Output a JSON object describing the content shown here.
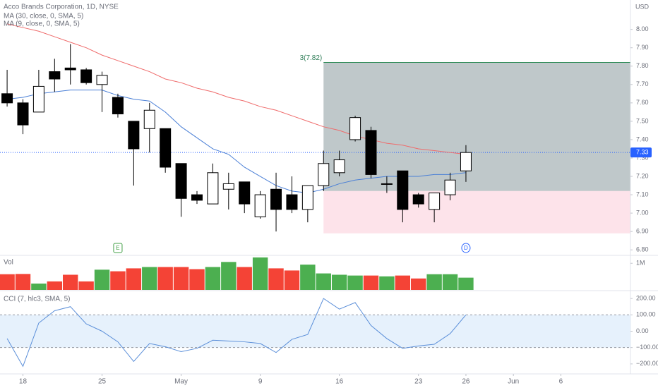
{
  "chart_data": [
    {
      "type": "candlestick",
      "title": "Acco Brands Corporation, 1D, NYSE",
      "currency": "USD",
      "x": [
        0,
        1,
        2,
        3,
        4,
        5,
        6,
        7,
        8,
        9,
        10,
        11,
        12,
        13,
        14,
        15,
        16,
        17,
        18,
        19,
        20,
        21,
        22,
        23,
        24,
        25,
        26,
        27,
        28,
        29
      ],
      "open": [
        7.65,
        7.6,
        7.55,
        7.77,
        7.79,
        7.78,
        7.7,
        7.63,
        7.5,
        7.46,
        7.46,
        7.27,
        7.1,
        7.05,
        7.13,
        7.17,
        6.98,
        7.13,
        7.1,
        7.02,
        7.15,
        7.22,
        7.4,
        7.45,
        7.16,
        7.23,
        7.1,
        7.02,
        7.1,
        7.23
      ],
      "high": [
        7.78,
        7.62,
        7.78,
        7.84,
        7.92,
        7.79,
        7.77,
        7.65,
        7.5,
        7.6,
        7.46,
        7.27,
        7.12,
        7.27,
        7.22,
        7.17,
        7.12,
        7.22,
        7.2,
        7.15,
        7.34,
        7.34,
        7.53,
        7.47,
        7.2,
        7.23,
        7.11,
        7.11,
        7.22,
        7.37
      ],
      "low": [
        7.58,
        7.43,
        7.55,
        7.66,
        7.7,
        7.7,
        7.55,
        7.52,
        7.15,
        7.33,
        7.22,
        6.98,
        7.05,
        7.05,
        7.02,
        7.0,
        6.97,
        6.9,
        7.0,
        6.95,
        7.12,
        7.2,
        7.39,
        7.19,
        7.11,
        6.95,
        7.03,
        6.95,
        7.07,
        7.17
      ],
      "close": [
        7.6,
        7.48,
        7.69,
        7.73,
        7.78,
        7.71,
        7.75,
        7.54,
        7.35,
        7.56,
        7.25,
        7.08,
        7.07,
        7.22,
        7.16,
        7.05,
        7.1,
        7.02,
        7.02,
        7.15,
        7.27,
        7.29,
        7.52,
        7.21,
        7.16,
        7.02,
        7.05,
        7.11,
        7.18,
        7.33
      ],
      "up_color": "#ffffff",
      "down_color": "#000000",
      "overlays": [
        {
          "name": "MA (30, close, 0, SMA, 5)",
          "color": "#ef6b6b",
          "values": [
            8.03,
            8.01,
            7.99,
            7.96,
            7.93,
            7.9,
            7.86,
            7.83,
            7.8,
            7.77,
            7.73,
            7.71,
            7.68,
            7.66,
            7.63,
            7.61,
            7.58,
            7.56,
            7.53,
            7.5,
            7.47,
            7.45,
            7.42,
            7.4,
            7.38,
            7.37,
            7.35,
            7.34,
            7.33,
            7.32
          ]
        },
        {
          "name": "MA (9, close, 0, SMA, 5)",
          "color": "#4a7fd6",
          "values": [
            7.62,
            7.63,
            7.65,
            7.66,
            7.67,
            7.67,
            7.67,
            7.64,
            7.62,
            7.61,
            7.55,
            7.47,
            7.41,
            7.35,
            7.32,
            7.25,
            7.2,
            7.15,
            7.12,
            7.11,
            7.13,
            7.16,
            7.18,
            7.19,
            7.2,
            7.2,
            7.2,
            7.21,
            7.21,
            7.22
          ]
        }
      ],
      "last_price": 7.33,
      "last_price_color": "#2962ff",
      "position": {
        "start_x": 20,
        "target": 7.82,
        "entry": 7.12,
        "stop": 6.89,
        "target_label": "3(7.82)"
      },
      "events": [
        {
          "x": 7,
          "label": "E",
          "color": "#43a047"
        },
        {
          "x": 29,
          "label": "D",
          "color": "#2962ff"
        }
      ],
      "xlim": [
        -0.45,
        39.4
      ],
      "xticks": [
        {
          "value": 1,
          "label": "18"
        },
        {
          "value": 6,
          "label": "25"
        },
        {
          "value": 11,
          "label": "May"
        },
        {
          "value": 16,
          "label": "9"
        },
        {
          "value": 21,
          "label": "16"
        },
        {
          "value": 26,
          "label": "23"
        },
        {
          "value": 29,
          "label": "26"
        },
        {
          "value": 32,
          "label": "Jun"
        },
        {
          "value": 35,
          "label": "6"
        }
      ],
      "ylim": [
        6.77,
        8.16
      ],
      "yticks": [
        {
          "value": 8.0,
          "label": "8.00"
        },
        {
          "value": 7.9,
          "label": "7.90"
        },
        {
          "value": 7.8,
          "label": "7.80"
        },
        {
          "value": 7.7,
          "label": "7.70"
        },
        {
          "value": 7.6,
          "label": "7.60"
        },
        {
          "value": 7.5,
          "label": "7.50"
        },
        {
          "value": 7.4,
          "label": "7.40"
        },
        {
          "value": 7.3,
          "label": "7.30"
        },
        {
          "value": 7.2,
          "label": "7.20"
        },
        {
          "value": 7.1,
          "label": "7.10"
        },
        {
          "value": 7.0,
          "label": "7.00"
        },
        {
          "value": 6.9,
          "label": "6.90"
        },
        {
          "value": 6.8,
          "label": "6.80"
        }
      ]
    },
    {
      "type": "bar",
      "title": "Vol",
      "values": [
        590000,
        600000,
        240000,
        320000,
        570000,
        320000,
        760000,
        700000,
        810000,
        860000,
        860000,
        860000,
        780000,
        860000,
        1050000,
        860000,
        1220000,
        810000,
        730000,
        950000,
        620000,
        570000,
        540000,
        540000,
        510000,
        540000,
        430000,
        590000,
        590000,
        460000
      ],
      "up_color": "#4caf50",
      "down_color": "#f44336",
      "ylim": [
        0,
        1297000
      ],
      "yticks": [
        {
          "value": 1000000,
          "label": "1M"
        }
      ]
    },
    {
      "type": "line",
      "title": "CCI (7, hlc3, SMA, 5)",
      "color": "#5b8fd9",
      "band_color": "#e6f1fc",
      "values": [
        -45,
        -215,
        50,
        125,
        150,
        45,
        0,
        -65,
        -185,
        -75,
        -95,
        -125,
        -105,
        -55,
        -60,
        -65,
        -75,
        -130,
        -50,
        -20,
        200,
        135,
        175,
        35,
        -45,
        -105,
        -90,
        -80,
        -15,
        100
      ],
      "band": [
        -100,
        100
      ],
      "ylim": [
        -261,
        248
      ],
      "yticks": [
        {
          "value": 200,
          "label": "200.00"
        },
        {
          "value": 100,
          "label": "100.00"
        },
        {
          "value": 0,
          "label": "0.00"
        },
        {
          "value": -100,
          "label": "−100.00"
        },
        {
          "value": -200,
          "label": "−200.00"
        }
      ]
    }
  ]
}
